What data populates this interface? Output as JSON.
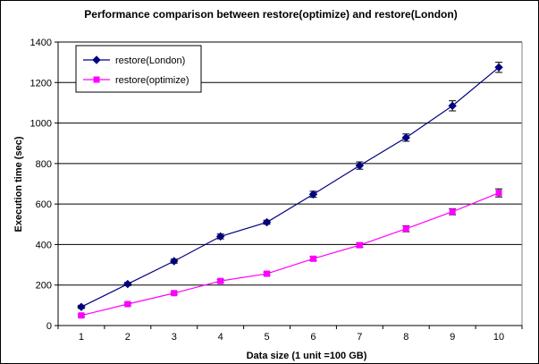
{
  "chart_data": {
    "type": "line",
    "title": "Performance comparison between restore(optimize) and restore(London)",
    "xlabel": "Data size (1 unit =100 GB)",
    "ylabel": "Execution time (sec)",
    "x": [
      1,
      2,
      3,
      4,
      5,
      6,
      7,
      8,
      9,
      10
    ],
    "ylim": [
      0,
      1400
    ],
    "yticks": [
      0,
      200,
      400,
      600,
      800,
      1000,
      1200,
      1400
    ],
    "grid": true,
    "legend_position": "top-left",
    "series": [
      {
        "name": "restore(London)",
        "color": "#000080",
        "marker": "diamond",
        "values": [
          92,
          205,
          318,
          440,
          510,
          648,
          790,
          928,
          1085,
          1275
        ],
        "errors": [
          8,
          8,
          10,
          12,
          10,
          15,
          18,
          18,
          25,
          25
        ]
      },
      {
        "name": "restore(optimize)",
        "color": "#ff00ff",
        "marker": "square",
        "values": [
          50,
          106,
          160,
          220,
          256,
          330,
          397,
          478,
          562,
          655
        ],
        "errors": [
          6,
          6,
          6,
          8,
          8,
          10,
          10,
          15,
          15,
          20
        ]
      }
    ]
  }
}
